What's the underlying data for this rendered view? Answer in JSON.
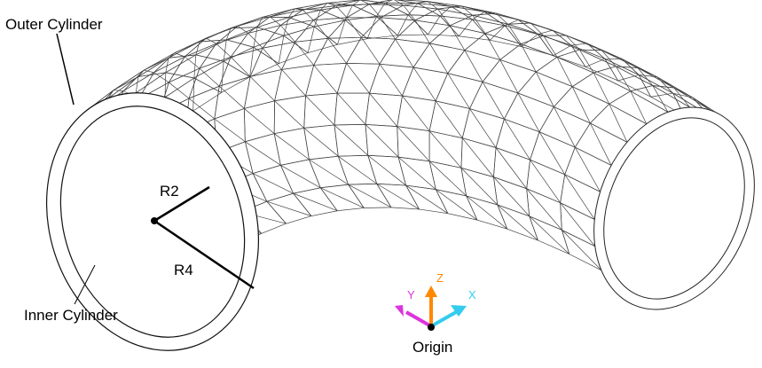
{
  "labels": {
    "outer_cylinder": "Outer Cylinder",
    "inner_cylinder": "Inner Cylinder",
    "r2": "R2",
    "r4": "R4",
    "origin": "Origin"
  },
  "axes": {
    "x": "X",
    "y": "Y",
    "z": "Z"
  },
  "colors": {
    "x_axis": "#33ccee",
    "y_axis": "#dd33dd",
    "z_axis": "#ff8800",
    "mesh": "#444444"
  }
}
